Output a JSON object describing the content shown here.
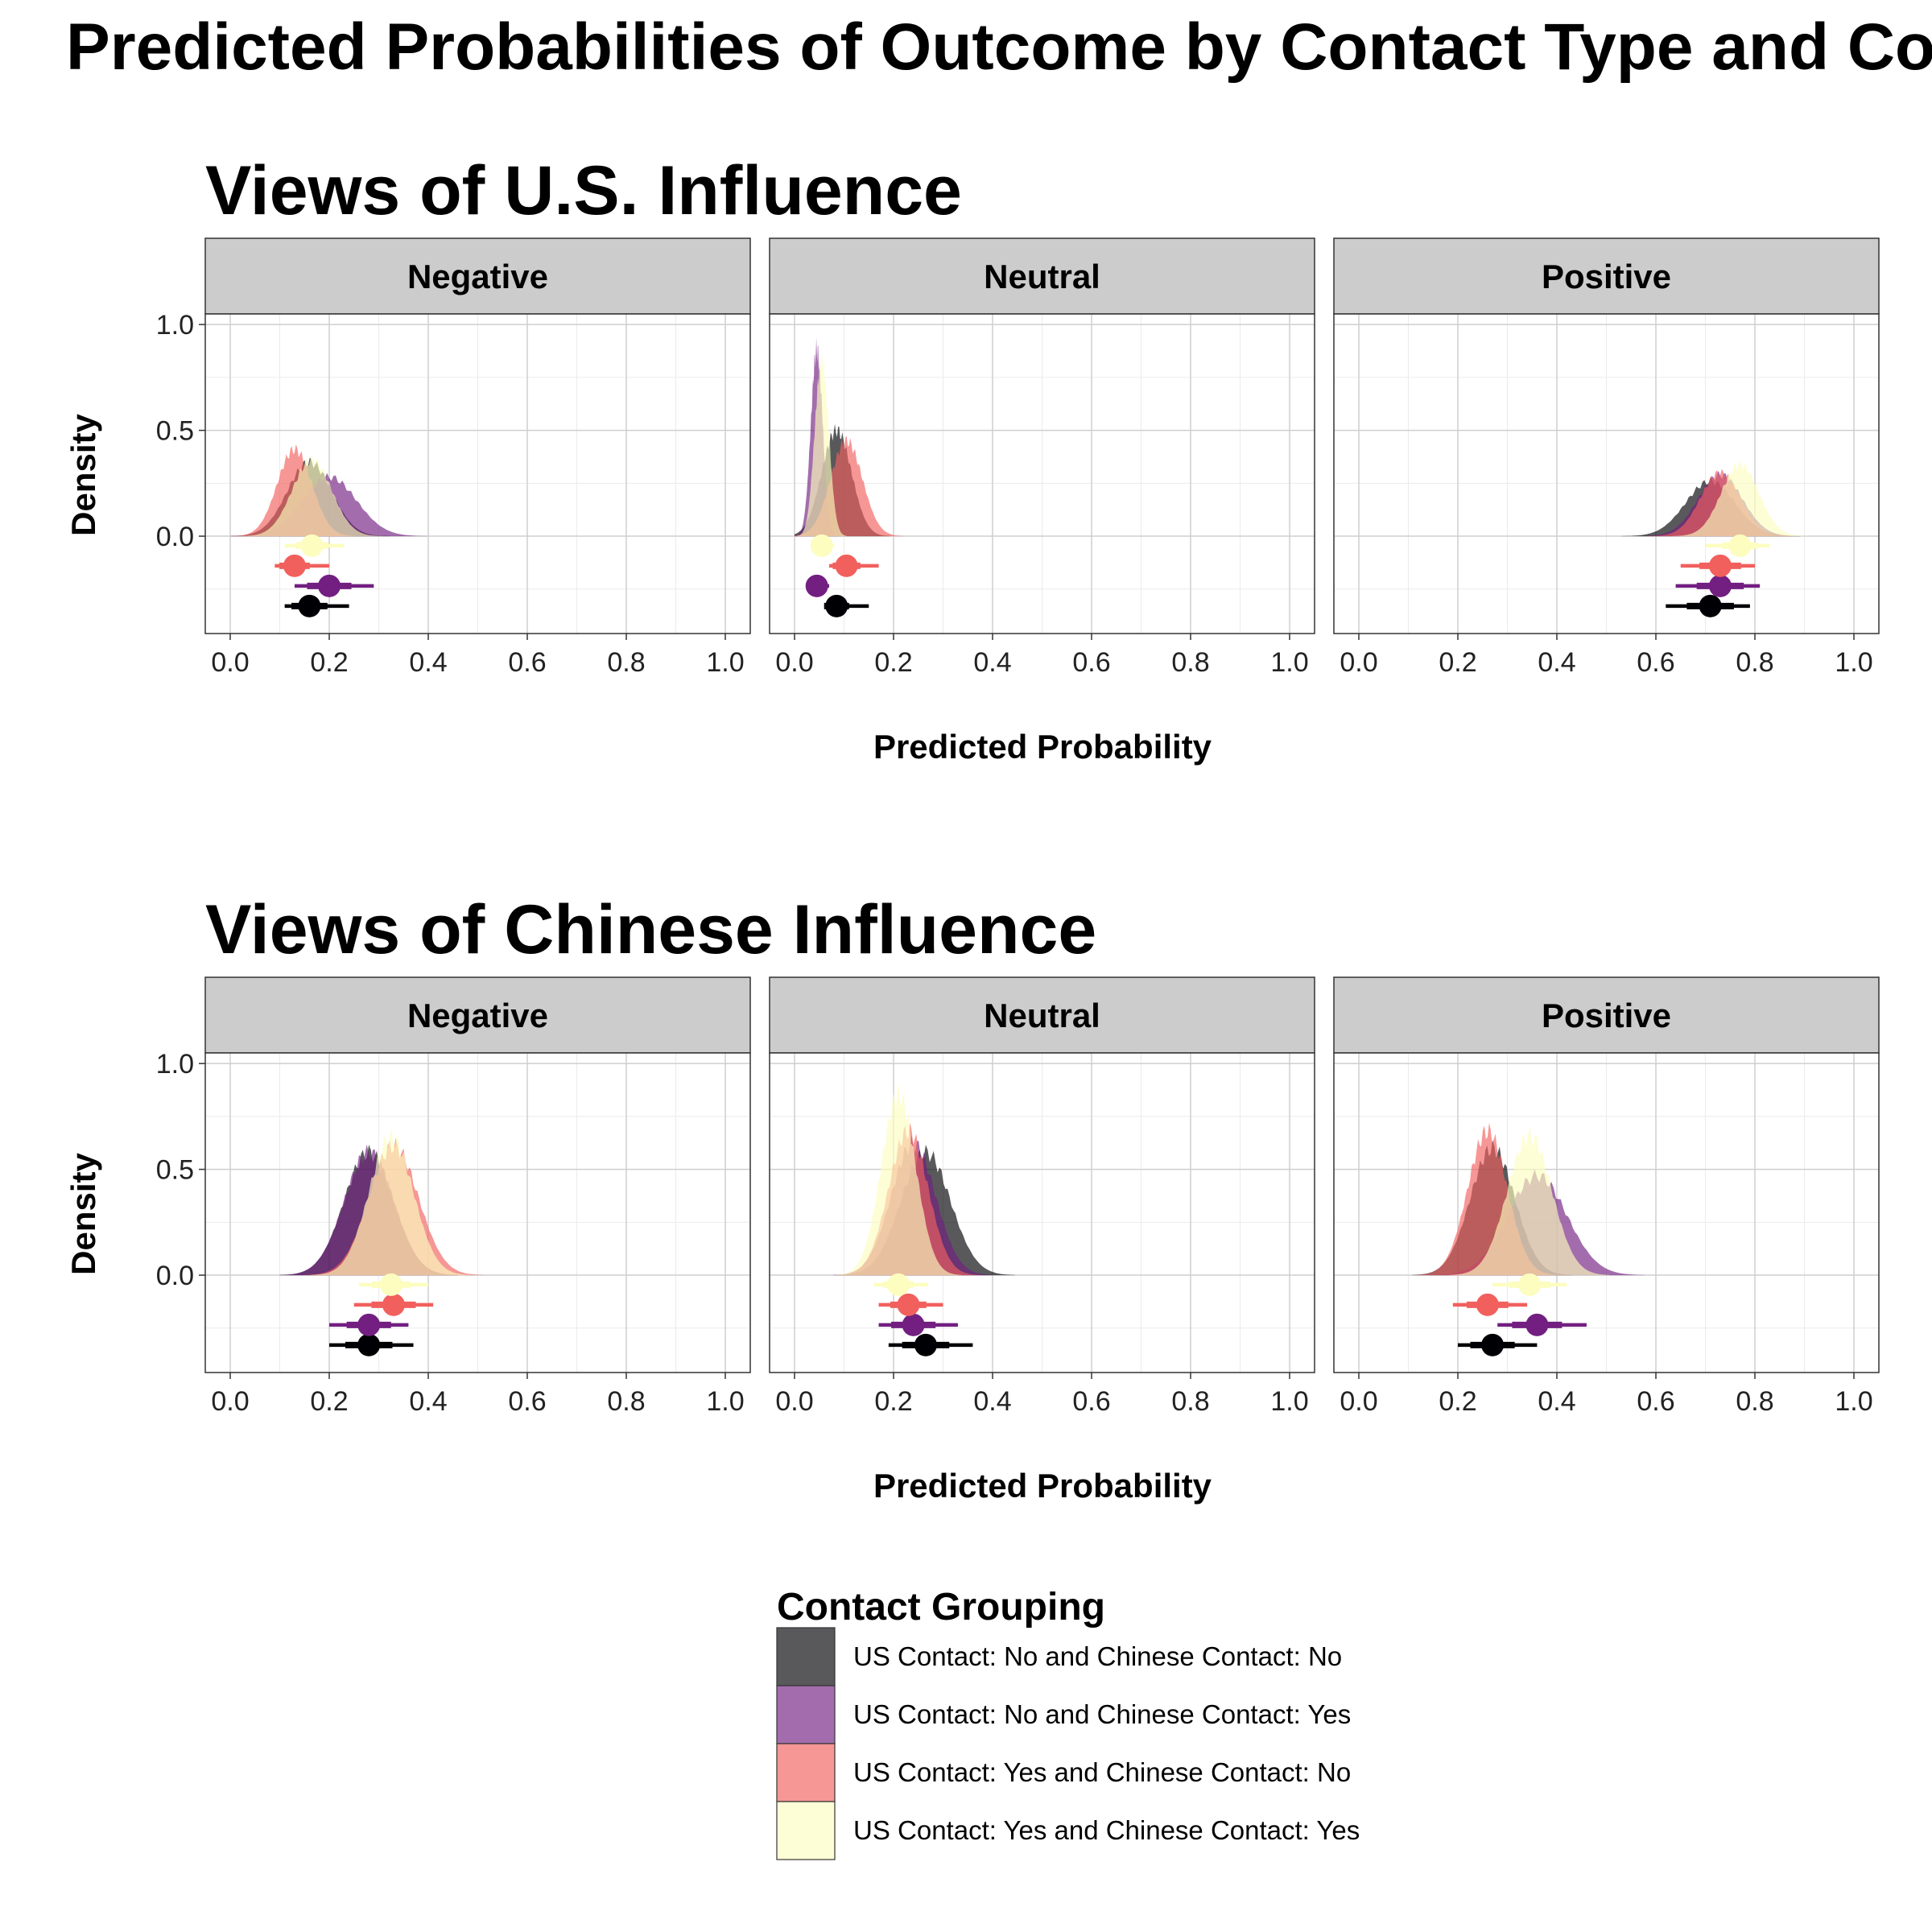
{
  "title": "Predicted Probabilities of Outcome by Contact Type and Country",
  "legend": {
    "title": "Contact Grouping",
    "entries": [
      {
        "label": "US Contact: No and Chinese Contact: No",
        "color": "#000004"
      },
      {
        "label": "US Contact: No and Chinese Contact: Yes",
        "color": "#721F81"
      },
      {
        "label": "US Contact: Yes and Chinese Contact: No",
        "color": "#F1605D"
      },
      {
        "label": "US Contact: Yes and Chinese Contact: Yes",
        "color": "#FCFDBF"
      }
    ]
  },
  "chart_data": [
    {
      "type": "area",
      "title": "Views of U.S. Influence",
      "xlabel": "Predicted Probability",
      "ylabel": "Density",
      "xlim": [
        0,
        1
      ],
      "ylim": [
        -0.46,
        1.05
      ],
      "x_ticks": [
        "0.0",
        "0.2",
        "0.4",
        "0.6",
        "0.8",
        "1.0"
      ],
      "y_ticks": [
        "0.0",
        "0.5",
        "1.0"
      ],
      "panels": [
        {
          "facet": "Negative",
          "series": [
            {
              "name": "US Contact: No and Chinese Contact: No",
              "mean": 0.16,
              "sd": 0.045,
              "ci": [
                0.11,
                0.24
              ],
              "peak": 0.35
            },
            {
              "name": "US Contact: No and Chinese Contact: Yes",
              "mean": 0.2,
              "sd": 0.055,
              "ci": [
                0.13,
                0.29
              ],
              "peak": 0.28
            },
            {
              "name": "US Contact: Yes and Chinese Contact: No",
              "mean": 0.13,
              "sd": 0.035,
              "ci": [
                0.09,
                0.2
              ],
              "peak": 0.41
            },
            {
              "name": "US Contact: Yes and Chinese Contact: Yes",
              "mean": 0.165,
              "sd": 0.04,
              "ci": [
                0.11,
                0.23
              ],
              "peak": 0.36
            }
          ]
        },
        {
          "facet": "Neutral",
          "series": [
            {
              "name": "US Contact: No and Chinese Contact: No",
              "mean": 0.085,
              "sd": 0.03,
              "ci": [
                0.06,
                0.15
              ],
              "peak": 0.5
            },
            {
              "name": "US Contact: No and Chinese Contact: Yes",
              "mean": 0.045,
              "sd": 0.012,
              "ci": [
                0.03,
                0.07
              ],
              "peak": 0.88
            },
            {
              "name": "US Contact: Yes and Chinese Contact: No",
              "mean": 0.105,
              "sd": 0.032,
              "ci": [
                0.07,
                0.17
              ],
              "peak": 0.45
            },
            {
              "name": "US Contact: Yes and Chinese Contact: Yes",
              "mean": 0.055,
              "sd": 0.014,
              "ci": [
                0.04,
                0.08
              ],
              "peak": 0.84
            }
          ]
        },
        {
          "facet": "Positive",
          "series": [
            {
              "name": "US Contact: No and Chinese Contact: No",
              "mean": 0.71,
              "sd": 0.05,
              "ci": [
                0.62,
                0.79
              ],
              "peak": 0.26
            },
            {
              "name": "US Contact: No and Chinese Contact: Yes",
              "mean": 0.73,
              "sd": 0.045,
              "ci": [
                0.64,
                0.81
              ],
              "peak": 0.29
            },
            {
              "name": "US Contact: Yes and Chinese Contact: No",
              "mean": 0.73,
              "sd": 0.04,
              "ci": [
                0.65,
                0.8
              ],
              "peak": 0.3
            },
            {
              "name": "US Contact: Yes and Chinese Contact: Yes",
              "mean": 0.77,
              "sd": 0.038,
              "ci": [
                0.7,
                0.83
              ],
              "peak": 0.34
            }
          ]
        }
      ]
    },
    {
      "type": "area",
      "title": "Views of Chinese Influence",
      "xlabel": "Predicted Probability",
      "ylabel": "Density",
      "xlim": [
        0,
        1
      ],
      "ylim": [
        -0.46,
        1.05
      ],
      "x_ticks": [
        "0.0",
        "0.2",
        "0.4",
        "0.6",
        "0.8",
        "1.0"
      ],
      "y_ticks": [
        "0.0",
        "0.5",
        "1.0"
      ],
      "panels": [
        {
          "facet": "Negative",
          "series": [
            {
              "name": "US Contact: No and Chinese Contact: No",
              "mean": 0.28,
              "sd": 0.05,
              "ci": [
                0.2,
                0.37
              ],
              "peak": 0.58
            },
            {
              "name": "US Contact: No and Chinese Contact: Yes",
              "mean": 0.28,
              "sd": 0.05,
              "ci": [
                0.2,
                0.36
              ],
              "peak": 0.58
            },
            {
              "name": "US Contact: Yes and Chinese Contact: No",
              "mean": 0.33,
              "sd": 0.05,
              "ci": [
                0.25,
                0.41
              ],
              "peak": 0.61
            },
            {
              "name": "US Contact: Yes and Chinese Contact: Yes",
              "mean": 0.325,
              "sd": 0.045,
              "ci": [
                0.26,
                0.4
              ],
              "peak": 0.65
            }
          ]
        },
        {
          "facet": "Neutral",
          "series": [
            {
              "name": "US Contact: No and Chinese Contact: No",
              "mean": 0.265,
              "sd": 0.05,
              "ci": [
                0.19,
                0.36
              ],
              "peak": 0.58
            },
            {
              "name": "US Contact: No and Chinese Contact: Yes",
              "mean": 0.24,
              "sd": 0.045,
              "ci": [
                0.17,
                0.33
              ],
              "peak": 0.62
            },
            {
              "name": "US Contact: Yes and Chinese Contact: No",
              "mean": 0.23,
              "sd": 0.04,
              "ci": [
                0.17,
                0.3
              ],
              "peak": 0.68
            },
            {
              "name": "US Contact: Yes and Chinese Contact: Yes",
              "mean": 0.21,
              "sd": 0.035,
              "ci": [
                0.16,
                0.27
              ],
              "peak": 0.85
            }
          ]
        },
        {
          "facet": "Positive",
          "series": [
            {
              "name": "US Contact: No and Chinese Contact: No",
              "mean": 0.27,
              "sd": 0.045,
              "ci": [
                0.2,
                0.36
              ],
              "peak": 0.6
            },
            {
              "name": "US Contact: No and Chinese Contact: Yes",
              "mean": 0.36,
              "sd": 0.06,
              "ci": [
                0.28,
                0.46
              ],
              "peak": 0.47
            },
            {
              "name": "US Contact: Yes and Chinese Contact: No",
              "mean": 0.26,
              "sd": 0.04,
              "ci": [
                0.19,
                0.34
              ],
              "peak": 0.68
            },
            {
              "name": "US Contact: Yes and Chinese Contact: Yes",
              "mean": 0.345,
              "sd": 0.045,
              "ci": [
                0.27,
                0.42
              ],
              "peak": 0.66
            }
          ]
        }
      ]
    }
  ]
}
